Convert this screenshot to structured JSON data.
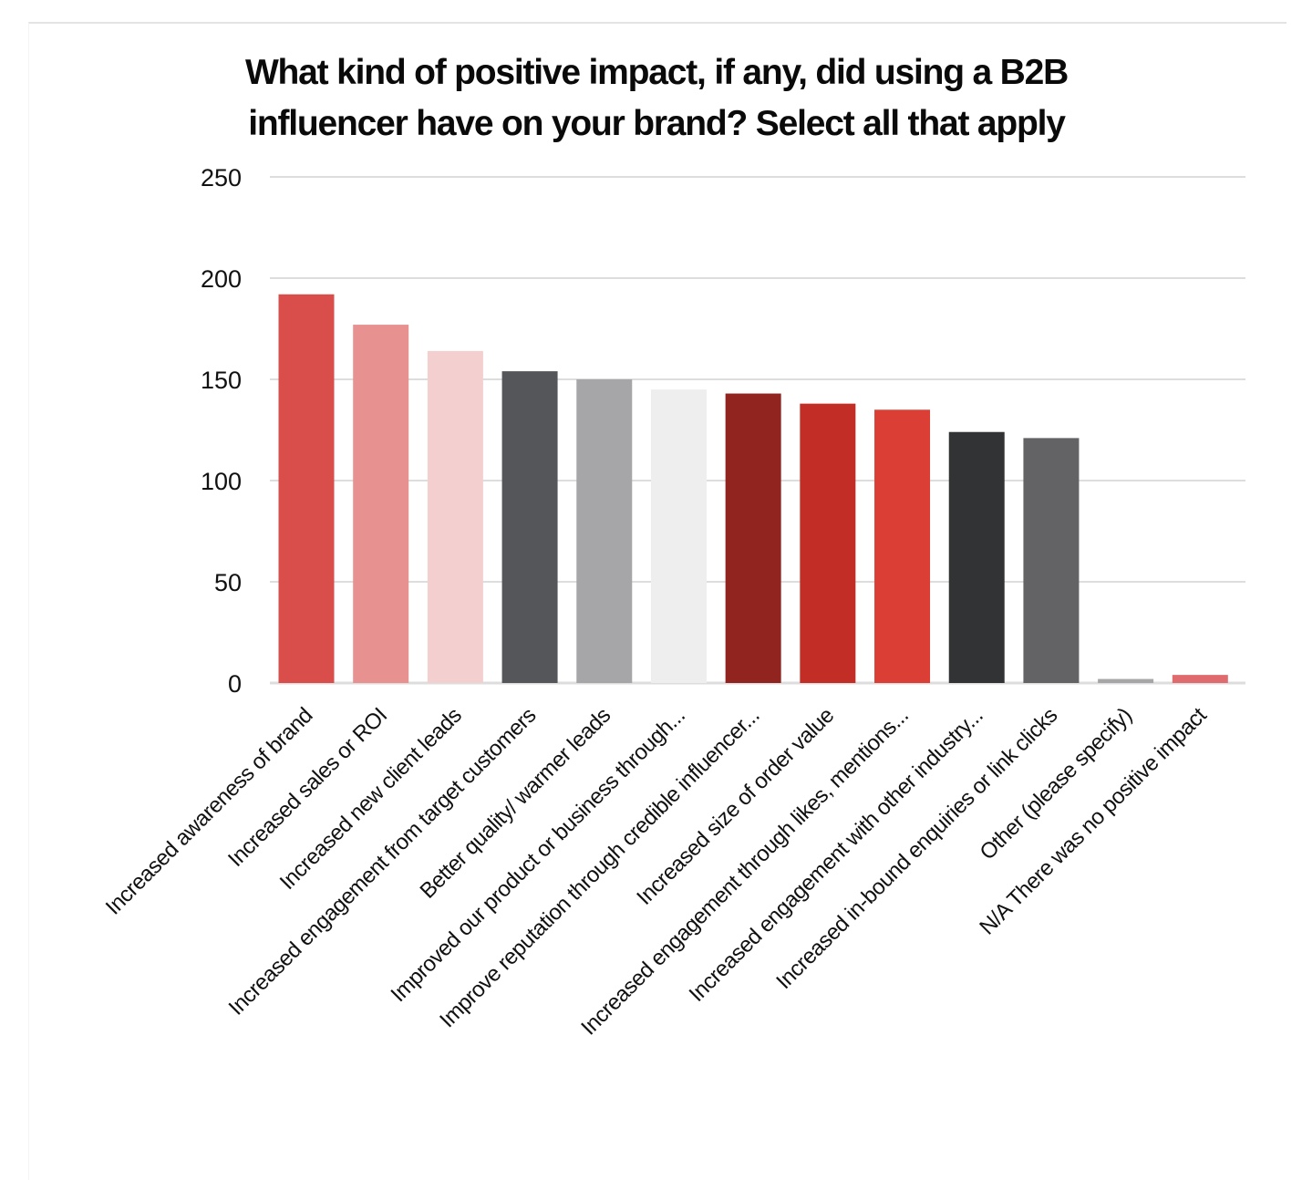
{
  "chart_data": {
    "type": "bar",
    "title": "What kind of positive impact, if any, did using a B2B influencer have on your brand? Select all that apply",
    "title_lines": [
      "What kind of positive impact, if any, did using a B2B",
      "influencer have on your brand? Select all that apply"
    ],
    "xlabel": "",
    "ylabel": "",
    "ylim": [
      0,
      250
    ],
    "yticks": [
      0,
      50,
      100,
      150,
      200,
      250
    ],
    "grid": true,
    "legend": "none",
    "categories": [
      "Increased awareness of brand",
      "Increased sales or ROI",
      "Increased new client leads",
      "Increased engagement from target customers",
      "Better quality/ warmer leads",
      "Improved our product or business through...",
      "Improve reputation through credible influencer...",
      "Increased size of order value",
      "Increased engagement through likes, mentions...",
      "Increased engagement with other industry...",
      "Increased in-bound enquiries or link clicks",
      "Other (please specify)",
      "N/A There was no positive impact"
    ],
    "values": [
      192,
      177,
      164,
      154,
      150,
      145,
      143,
      138,
      135,
      124,
      121,
      2,
      4
    ],
    "colors": [
      "#D94D4B",
      "#E79190",
      "#F3CFCF",
      "#55565A",
      "#A6A6A8",
      "#EEEEEE",
      "#922420",
      "#C22E25",
      "#DB3E34",
      "#323335",
      "#636365",
      "#A6A6A8",
      "#E06B6E"
    ],
    "gridline_color": "#DDDDDD"
  }
}
